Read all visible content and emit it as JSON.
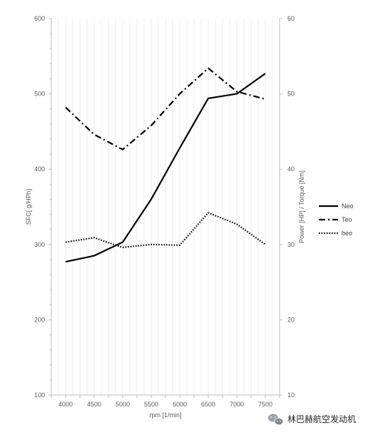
{
  "chart_data": {
    "type": "line",
    "x_label": "rpm [1/min]",
    "y_left_label": "SFC[ g/HPh]",
    "y_right_label": "Power [HP] / Torque [Nm]",
    "x": [
      4000,
      4500,
      5000,
      5500,
      6000,
      6500,
      7000,
      7500
    ],
    "x_ticks": [
      "4000",
      "4500",
      "5000",
      "5500",
      "6000",
      "6500",
      "7000",
      "7500"
    ],
    "y_left_range": [
      100,
      600
    ],
    "y_left_ticks": [
      "100",
      "200",
      "300",
      "400",
      "500",
      "600"
    ],
    "y_right_range": [
      10,
      60
    ],
    "y_right_ticks": [
      "10",
      "20",
      "30",
      "40",
      "50",
      "60"
    ],
    "grid": "vertical minor gridlines",
    "legend_position": "right",
    "series": [
      {
        "name": "Neo",
        "axis": "left",
        "style": "solid",
        "values": [
          277,
          285,
          303,
          360,
          428,
          494,
          500,
          527
        ]
      },
      {
        "name": "Teo",
        "axis": "left",
        "style": "dashdot",
        "values": [
          482,
          446,
          426,
          458,
          500,
          534,
          503,
          493
        ]
      },
      {
        "name": "beo",
        "axis": "left",
        "style": "dotted",
        "values": [
          303,
          309,
          296,
          300,
          299,
          342,
          327,
          300
        ]
      }
    ]
  },
  "watermark": {
    "text": "林巴赫航空发动机",
    "icon": "wechat-icon"
  }
}
